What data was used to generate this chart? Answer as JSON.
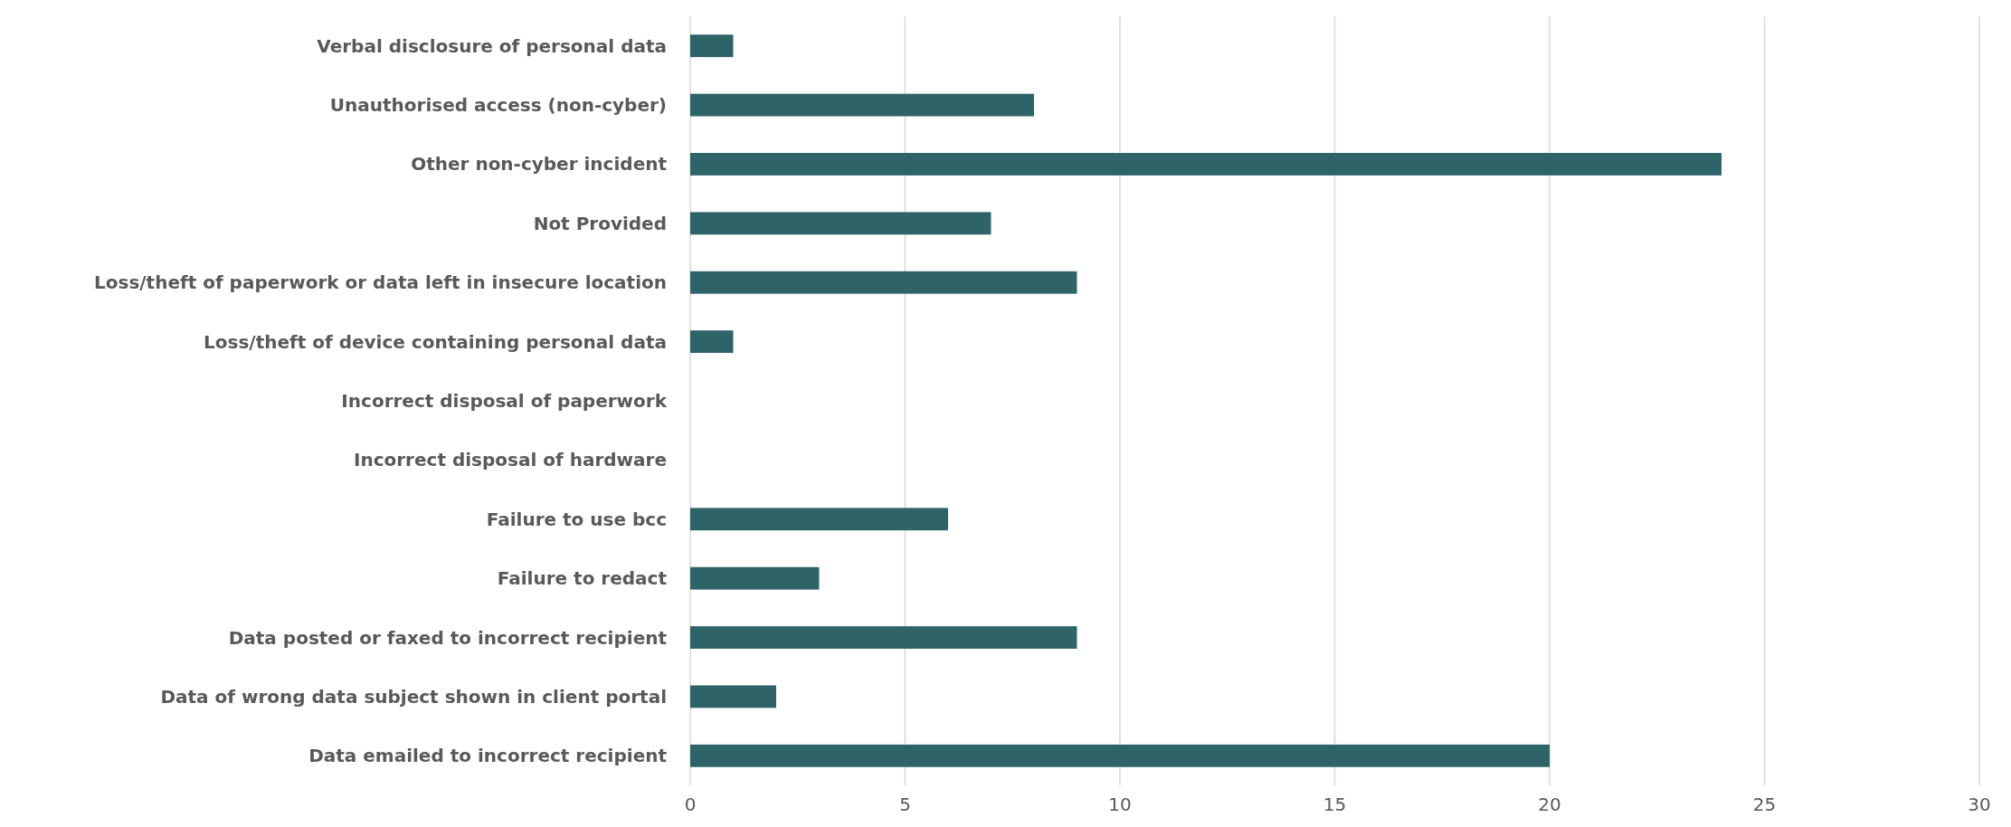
{
  "chart_data": {
    "type": "bar",
    "orientation": "horizontal",
    "categories": [
      "Verbal disclosure of personal data",
      "Unauthorised access (non-cyber)",
      "Other non-cyber incident",
      "Not Provided",
      "Loss/theft of paperwork or data left in insecure location",
      "Loss/theft of device containing personal data",
      "Incorrect disposal of paperwork",
      "Incorrect disposal of hardware",
      "Failure to use bcc",
      "Failure to redact",
      "Data posted or faxed to incorrect recipient",
      "Data of wrong data subject shown in client portal",
      "Data emailed to incorrect recipient"
    ],
    "values": [
      1,
      8,
      24,
      7,
      9,
      1,
      0,
      0,
      6,
      3,
      9,
      2,
      20
    ],
    "color": "#2e6468",
    "xlim": [
      0,
      30
    ],
    "xticks": [
      0,
      5,
      10,
      15,
      20,
      25,
      30
    ],
    "grid": "x"
  }
}
